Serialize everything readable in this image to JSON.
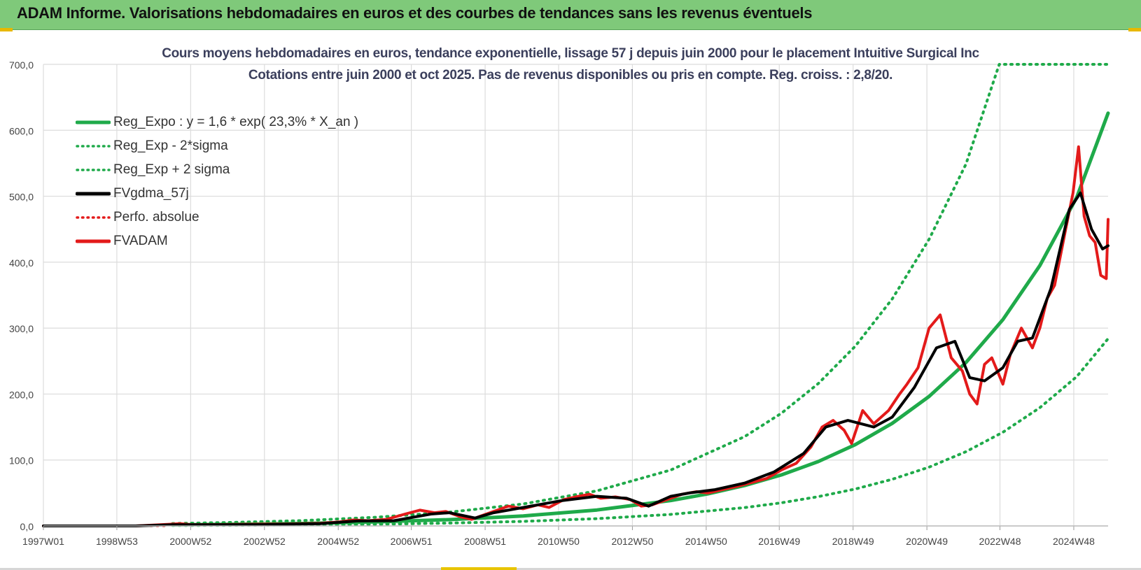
{
  "header": {
    "title": "ADAM Informe. Valorisations hebdomadaires en euros et des courbes de tendances sans les revenus éventuels"
  },
  "chart_data": {
    "type": "line",
    "title": "Cours moyens hebdomadaires en euros, tendance exponentielle, lissage 57 j depuis juin 2000 pour le placement Intuitive Surgical Inc",
    "subtitle": "Cotations entre juin 2000 et oct 2025. Pas de revenus disponibles ou pris en compte. Reg. croiss. : 2,8/20.",
    "xlabel": "",
    "ylabel": "",
    "ylim": [
      0,
      700
    ],
    "yticks": [
      "0,0",
      "100,0",
      "200,0",
      "300,0",
      "400,0",
      "500,0",
      "600,0",
      "700,0"
    ],
    "xlim": [
      1997.0,
      2025.85
    ],
    "xticks": [
      {
        "x": 1997.0,
        "label": "1997W01"
      },
      {
        "x": 1998.99,
        "label": "1998W53"
      },
      {
        "x": 2000.99,
        "label": "2000W52"
      },
      {
        "x": 2002.99,
        "label": "2002W52"
      },
      {
        "x": 2004.99,
        "label": "2004W52"
      },
      {
        "x": 2006.97,
        "label": "2006W51"
      },
      {
        "x": 2008.97,
        "label": "2008W51"
      },
      {
        "x": 2010.96,
        "label": "2010W50"
      },
      {
        "x": 2012.96,
        "label": "2012W50"
      },
      {
        "x": 2014.96,
        "label": "2014W50"
      },
      {
        "x": 2016.94,
        "label": "2016W49"
      },
      {
        "x": 2018.94,
        "label": "2018W49"
      },
      {
        "x": 2020.94,
        "label": "2020W49"
      },
      {
        "x": 2022.92,
        "label": "2022W48"
      },
      {
        "x": 2024.92,
        "label": "2024W48"
      }
    ],
    "grid": true,
    "legend_position": "top-left",
    "series": [
      {
        "name": "Reg_Expo : y = 1,6 * exp( 23,3% *  X_an )",
        "color": "#1faa4a",
        "style": "solid",
        "width": 5,
        "x": [
          2000.5,
          2002,
          2004,
          2006,
          2008,
          2010,
          2012,
          2014,
          2015,
          2016,
          2017,
          2018,
          2019,
          2020,
          2021,
          2022,
          2023,
          2024,
          2025,
          2025.85
        ],
        "y": [
          1.6,
          2.3,
          3.7,
          6.0,
          9.5,
          15.2,
          24.2,
          38.5,
          48.6,
          61.3,
          77.4,
          97.7,
          123.3,
          155.6,
          196.4,
          247.9,
          312.9,
          394.9,
          498.4,
          626
        ]
      },
      {
        "name": "Reg_Exp - 2*sigma",
        "color": "#1faa4a",
        "style": "dotted",
        "width": 4,
        "x": [
          2000.5,
          2002,
          2004,
          2006,
          2008,
          2010,
          2012,
          2014,
          2016,
          2017,
          2018,
          2019,
          2020,
          2021,
          2022,
          2023,
          2024,
          2025,
          2025.85
        ],
        "y": [
          0.7,
          1.0,
          1.7,
          2.7,
          4.3,
          6.9,
          11,
          17.5,
          27.8,
          35.1,
          44.4,
          56,
          70.7,
          89.2,
          112.6,
          142.1,
          179.4,
          226.4,
          284
        ]
      },
      {
        "name": "Reg_Exp + 2 sigma",
        "color": "#1faa4a",
        "style": "dotted",
        "width": 4,
        "x": [
          2000.5,
          2002,
          2004,
          2006,
          2008,
          2010,
          2012,
          2014,
          2016,
          2017,
          2018,
          2019,
          2020,
          2021,
          2022,
          2022.9,
          2023.5,
          2025.85
        ],
        "y": [
          3.7,
          5.2,
          8.1,
          13.1,
          20.9,
          33.3,
          53.2,
          84.9,
          135.4,
          171,
          216,
          272.7,
          344.3,
          434.7,
          548.9,
          700,
          700,
          700
        ]
      },
      {
        "name": "FVgdma_57j",
        "color": "#000000",
        "style": "solid",
        "width": 4,
        "x": [
          1997.0,
          1999.5,
          2000.5,
          2001.5,
          2003,
          2004.5,
          2005.5,
          2006.5,
          2007.5,
          2008.0,
          2008.7,
          2009.2,
          2010.0,
          2011.0,
          2012.0,
          2012.8,
          2013.4,
          2014.0,
          2014.5,
          2015.2,
          2016.0,
          2016.8,
          2017.6,
          2018.2,
          2018.8,
          2019.5,
          2020.0,
          2020.6,
          2021.2,
          2021.7,
          2022.1,
          2022.5,
          2023.0,
          2023.4,
          2023.8,
          2024.3,
          2024.8,
          2025.1,
          2025.4,
          2025.7,
          2025.85
        ],
        "y": [
          0,
          0,
          1.8,
          1.8,
          2,
          3.5,
          7.5,
          8,
          18,
          20,
          12,
          20,
          28,
          38,
          45,
          42,
          30,
          45,
          50,
          55,
          65,
          82,
          110,
          150,
          160,
          150,
          165,
          210,
          270,
          280,
          225,
          220,
          240,
          280,
          285,
          360,
          480,
          505,
          450,
          420,
          425
        ]
      },
      {
        "name": "Perfo. absolue",
        "color": "#e31a1a",
        "style": "dotted",
        "width": 3,
        "x": [
          1997.0,
          2000.4
        ],
        "y": [
          0,
          0
        ]
      },
      {
        "name": "FVADAM",
        "color": "#e31a1a",
        "style": "solid",
        "width": 4,
        "x": [
          1997.0,
          1999.5,
          2000.4,
          2000.7,
          2001.0,
          2001.6,
          2002.5,
          2003.5,
          2004.5,
          2005.0,
          2005.4,
          2005.8,
          2006.3,
          2006.8,
          2007.2,
          2007.6,
          2007.9,
          2008.3,
          2008.6,
          2008.9,
          2009.2,
          2009.6,
          2010.0,
          2010.4,
          2010.7,
          2011.1,
          2011.5,
          2011.8,
          2012.1,
          2012.5,
          2012.9,
          2013.2,
          2013.5,
          2013.9,
          2014.3,
          2014.7,
          2015.0,
          2015.4,
          2015.8,
          2016.2,
          2016.6,
          2017.0,
          2017.4,
          2017.8,
          2018.1,
          2018.4,
          2018.7,
          2018.9,
          2019.2,
          2019.5,
          2019.9,
          2020.2,
          2020.4,
          2020.7,
          2021.0,
          2021.3,
          2021.6,
          2021.9,
          2022.1,
          2022.3,
          2022.5,
          2022.7,
          2023.0,
          2023.2,
          2023.5,
          2023.8,
          2024.0,
          2024.2,
          2024.4,
          2024.7,
          2024.9,
          2025.05,
          2025.2,
          2025.35,
          2025.5,
          2025.65,
          2025.8,
          2025.85
        ],
        "y": [
          0,
          0,
          2.5,
          3.5,
          2,
          2,
          2.5,
          3,
          4,
          6,
          9,
          8,
          10,
          18,
          24,
          20,
          22,
          14,
          10,
          16,
          22,
          30,
          26,
          32,
          28,
          40,
          45,
          48,
          42,
          44,
          40,
          30,
          32,
          40,
          48,
          52,
          50,
          55,
          60,
          66,
          72,
          85,
          95,
          120,
          150,
          160,
          145,
          125,
          175,
          155,
          175,
          200,
          215,
          240,
          300,
          320,
          255,
          235,
          200,
          185,
          245,
          255,
          215,
          260,
          300,
          270,
          300,
          345,
          365,
          450,
          505,
          575,
          470,
          440,
          430,
          380,
          375,
          465
        ]
      }
    ]
  }
}
